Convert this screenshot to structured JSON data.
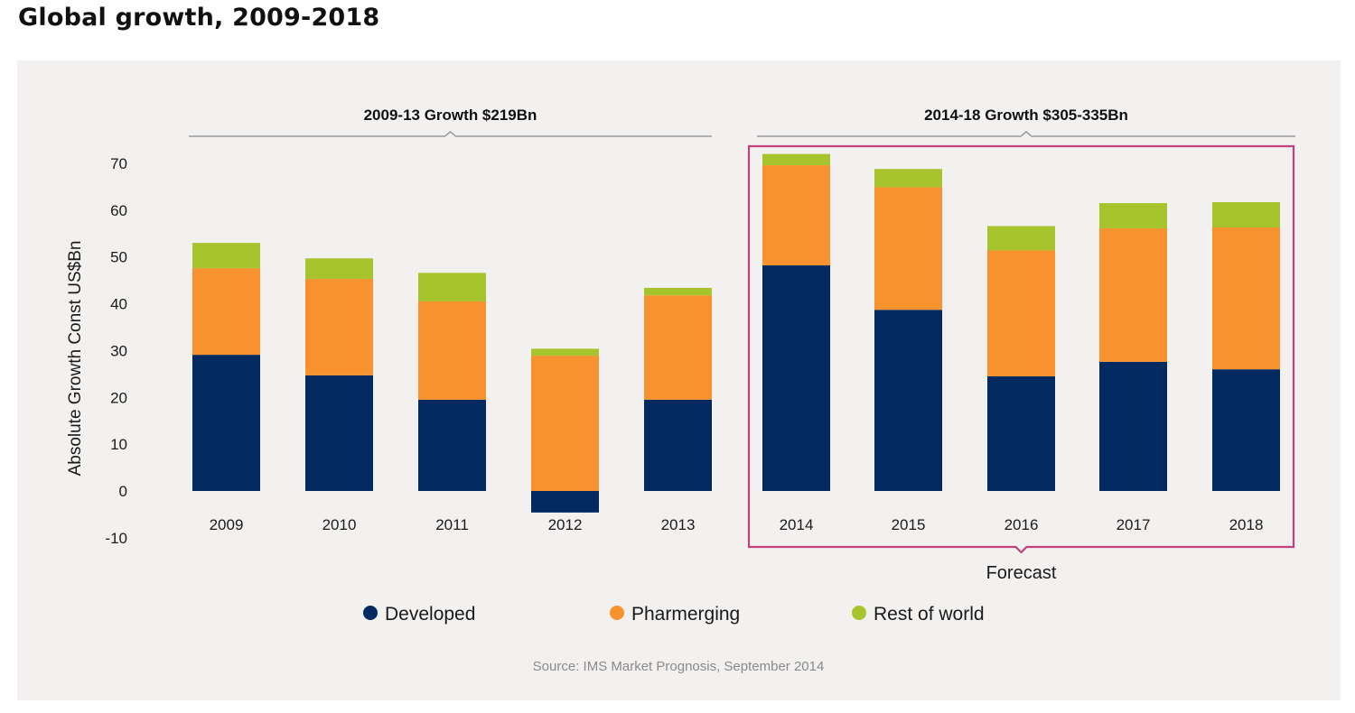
{
  "page": {
    "title": "Global growth, 2009-2018"
  },
  "chart_data": {
    "type": "bar",
    "stacked": true,
    "title": "Global growth, 2009-2018",
    "xlabel": "",
    "ylabel": "Absolute Growth Const US$Bn",
    "ylim": [
      -10,
      70
    ],
    "yticks": [
      70,
      60,
      50,
      40,
      30,
      20,
      10,
      0,
      -10
    ],
    "grid": false,
    "categories": [
      "2009",
      "2010",
      "2011",
      "2012",
      "2013",
      "2014",
      "2015",
      "2016",
      "2017",
      "2018"
    ],
    "series": [
      {
        "name": "Developed",
        "color": "#022a61",
        "values": [
          29.1,
          24.7,
          19.5,
          -4.6,
          19.5,
          48.2,
          38.7,
          24.5,
          27.6,
          26.0
        ]
      },
      {
        "name": "Pharmerging",
        "color": "#f7922f",
        "values": [
          18.5,
          20.6,
          21.0,
          28.9,
          22.3,
          21.4,
          26.2,
          26.9,
          28.5,
          30.3
        ]
      },
      {
        "name": "Rest of world",
        "color": "#a8c42c",
        "values": [
          5.4,
          4.4,
          6.1,
          1.5,
          1.6,
          2.4,
          3.9,
          5.2,
          5.4,
          5.4
        ]
      }
    ],
    "annotations": {
      "period_1": {
        "label": "2009-13 Growth $219Bn",
        "from": "2009",
        "to": "2013"
      },
      "period_2": {
        "label": "2014-18 Growth $305-335Bn",
        "from": "2014",
        "to": "2018"
      },
      "forecast": {
        "label": "Forecast",
        "from": "2014",
        "to": "2018",
        "color": "#c0417b"
      }
    },
    "legend": {
      "placement": "bottom",
      "entries": [
        "Developed",
        "Pharmerging",
        "Rest of world"
      ]
    },
    "source": "Source: IMS Market Prognosis, September 2014"
  }
}
